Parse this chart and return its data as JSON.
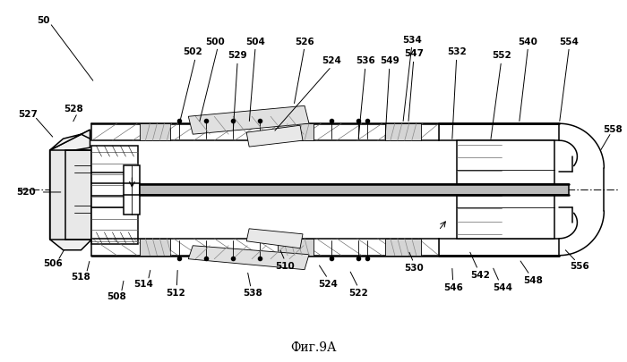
{
  "title": "Фиг.9А",
  "bg_color": "#ffffff",
  "fig_width": 7.0,
  "fig_height": 4.05,
  "lw_main": 1.1,
  "lw_thin": 0.6,
  "lw_thick": 1.8,
  "font_size": 7.5
}
